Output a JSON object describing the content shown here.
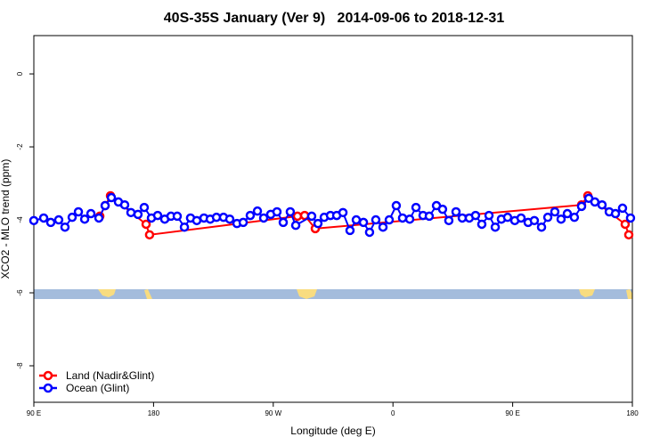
{
  "chart_data": {
    "type": "line",
    "title": "40S-35S January (Ver 9)   2014-09-06 to 2018-12-31",
    "x_label": "Longitude (deg E)",
    "y_label": "XCO2 - MLO trend (ppm)",
    "xlim": [
      90,
      540
    ],
    "xticks": [
      {
        "value": 90,
        "label": "90 E"
      },
      180,
      {
        "value": 270,
        "label": "90 W"
      },
      {
        "value": 360,
        "label": "0"
      },
      {
        "value": 450,
        "label": "90 E"
      },
      {
        "value": 540,
        "label": "180"
      }
    ],
    "ylim": [
      -9,
      1.05
    ],
    "yticks": [
      0,
      -2,
      -4,
      -6,
      -8
    ],
    "legend": "bottom-left",
    "series": [
      {
        "name": "Land (Nadir&Glint)",
        "color": "#ff0000",
        "x": [
          139.6,
          143.6,
          147.6,
          174.4,
          177.0,
          288.2,
          293.6,
          301.6,
          501.8,
          506.5,
          534.6,
          537.3
        ],
        "values": [
          -3.9,
          -3.61,
          -3.34,
          -4.12,
          -4.41,
          -3.9,
          -3.88,
          -4.24,
          -3.59,
          -3.34,
          -4.12,
          -4.41
        ]
      },
      {
        "name": "Ocean (Glint)",
        "color": "#0000ff",
        "x": [
          90,
          97.4,
          102.7,
          108.7,
          113.4,
          118.8,
          123.5,
          128.2,
          132.9,
          138.9,
          143.6,
          148.3,
          153.6,
          158.3,
          163.0,
          168.3,
          173.0,
          178.4,
          183.1,
          188.4,
          193.1,
          197.8,
          203.2,
          207.8,
          212.5,
          217.9,
          222.6,
          227.3,
          232.6,
          237.3,
          242.7,
          247.4,
          252.7,
          258.1,
          262.8,
          268.1,
          272.8,
          277.5,
          282.8,
          286.9,
          298.9,
          303.6,
          308.3,
          313.0,
          317.7,
          322.4,
          327.7,
          332.4,
          337.8,
          342.4,
          347.1,
          352.5,
          357.2,
          362.5,
          367.2,
          372.6,
          377.3,
          382.6,
          387.3,
          392.7,
          397.3,
          402.0,
          407.4,
          412.1,
          417.4,
          422.1,
          426.8,
          432.2,
          436.9,
          441.5,
          446.2,
          451.6,
          456.3,
          461.6,
          466.3,
          471.7,
          476.4,
          481.7,
          486.4,
          491.1,
          496.4,
          501.8,
          507.2,
          511.8,
          517.2,
          522.6,
          527.3,
          532.6,
          538.6
        ],
        "values": [
          -4.02,
          -3.95,
          -4.07,
          -4.0,
          -4.2,
          -3.93,
          -3.78,
          -3.98,
          -3.83,
          -3.95,
          -3.61,
          -3.39,
          -3.51,
          -3.59,
          -3.8,
          -3.85,
          -3.66,
          -3.95,
          -3.88,
          -3.98,
          -3.9,
          -3.9,
          -4.2,
          -3.95,
          -4.02,
          -3.95,
          -3.98,
          -3.93,
          -3.93,
          -3.98,
          -4.1,
          -4.07,
          -3.88,
          -3.76,
          -3.95,
          -3.85,
          -3.78,
          -4.07,
          -3.78,
          -4.15,
          -3.9,
          -4.1,
          -3.93,
          -3.88,
          -3.88,
          -3.8,
          -4.29,
          -4.0,
          -4.07,
          -4.34,
          -4.0,
          -4.2,
          -4.0,
          -3.61,
          -3.95,
          -3.98,
          -3.66,
          -3.88,
          -3.9,
          -3.61,
          -3.71,
          -4.02,
          -3.78,
          -3.95,
          -3.95,
          -3.88,
          -4.12,
          -3.88,
          -4.2,
          -3.98,
          -3.93,
          -4.02,
          -3.95,
          -4.07,
          -4.02,
          -4.2,
          -3.93,
          -3.78,
          -3.98,
          -3.83,
          -3.93,
          -3.63,
          -3.41,
          -3.51,
          -3.59,
          -3.78,
          -3.83,
          -3.68,
          -3.95
        ]
      }
    ]
  }
}
